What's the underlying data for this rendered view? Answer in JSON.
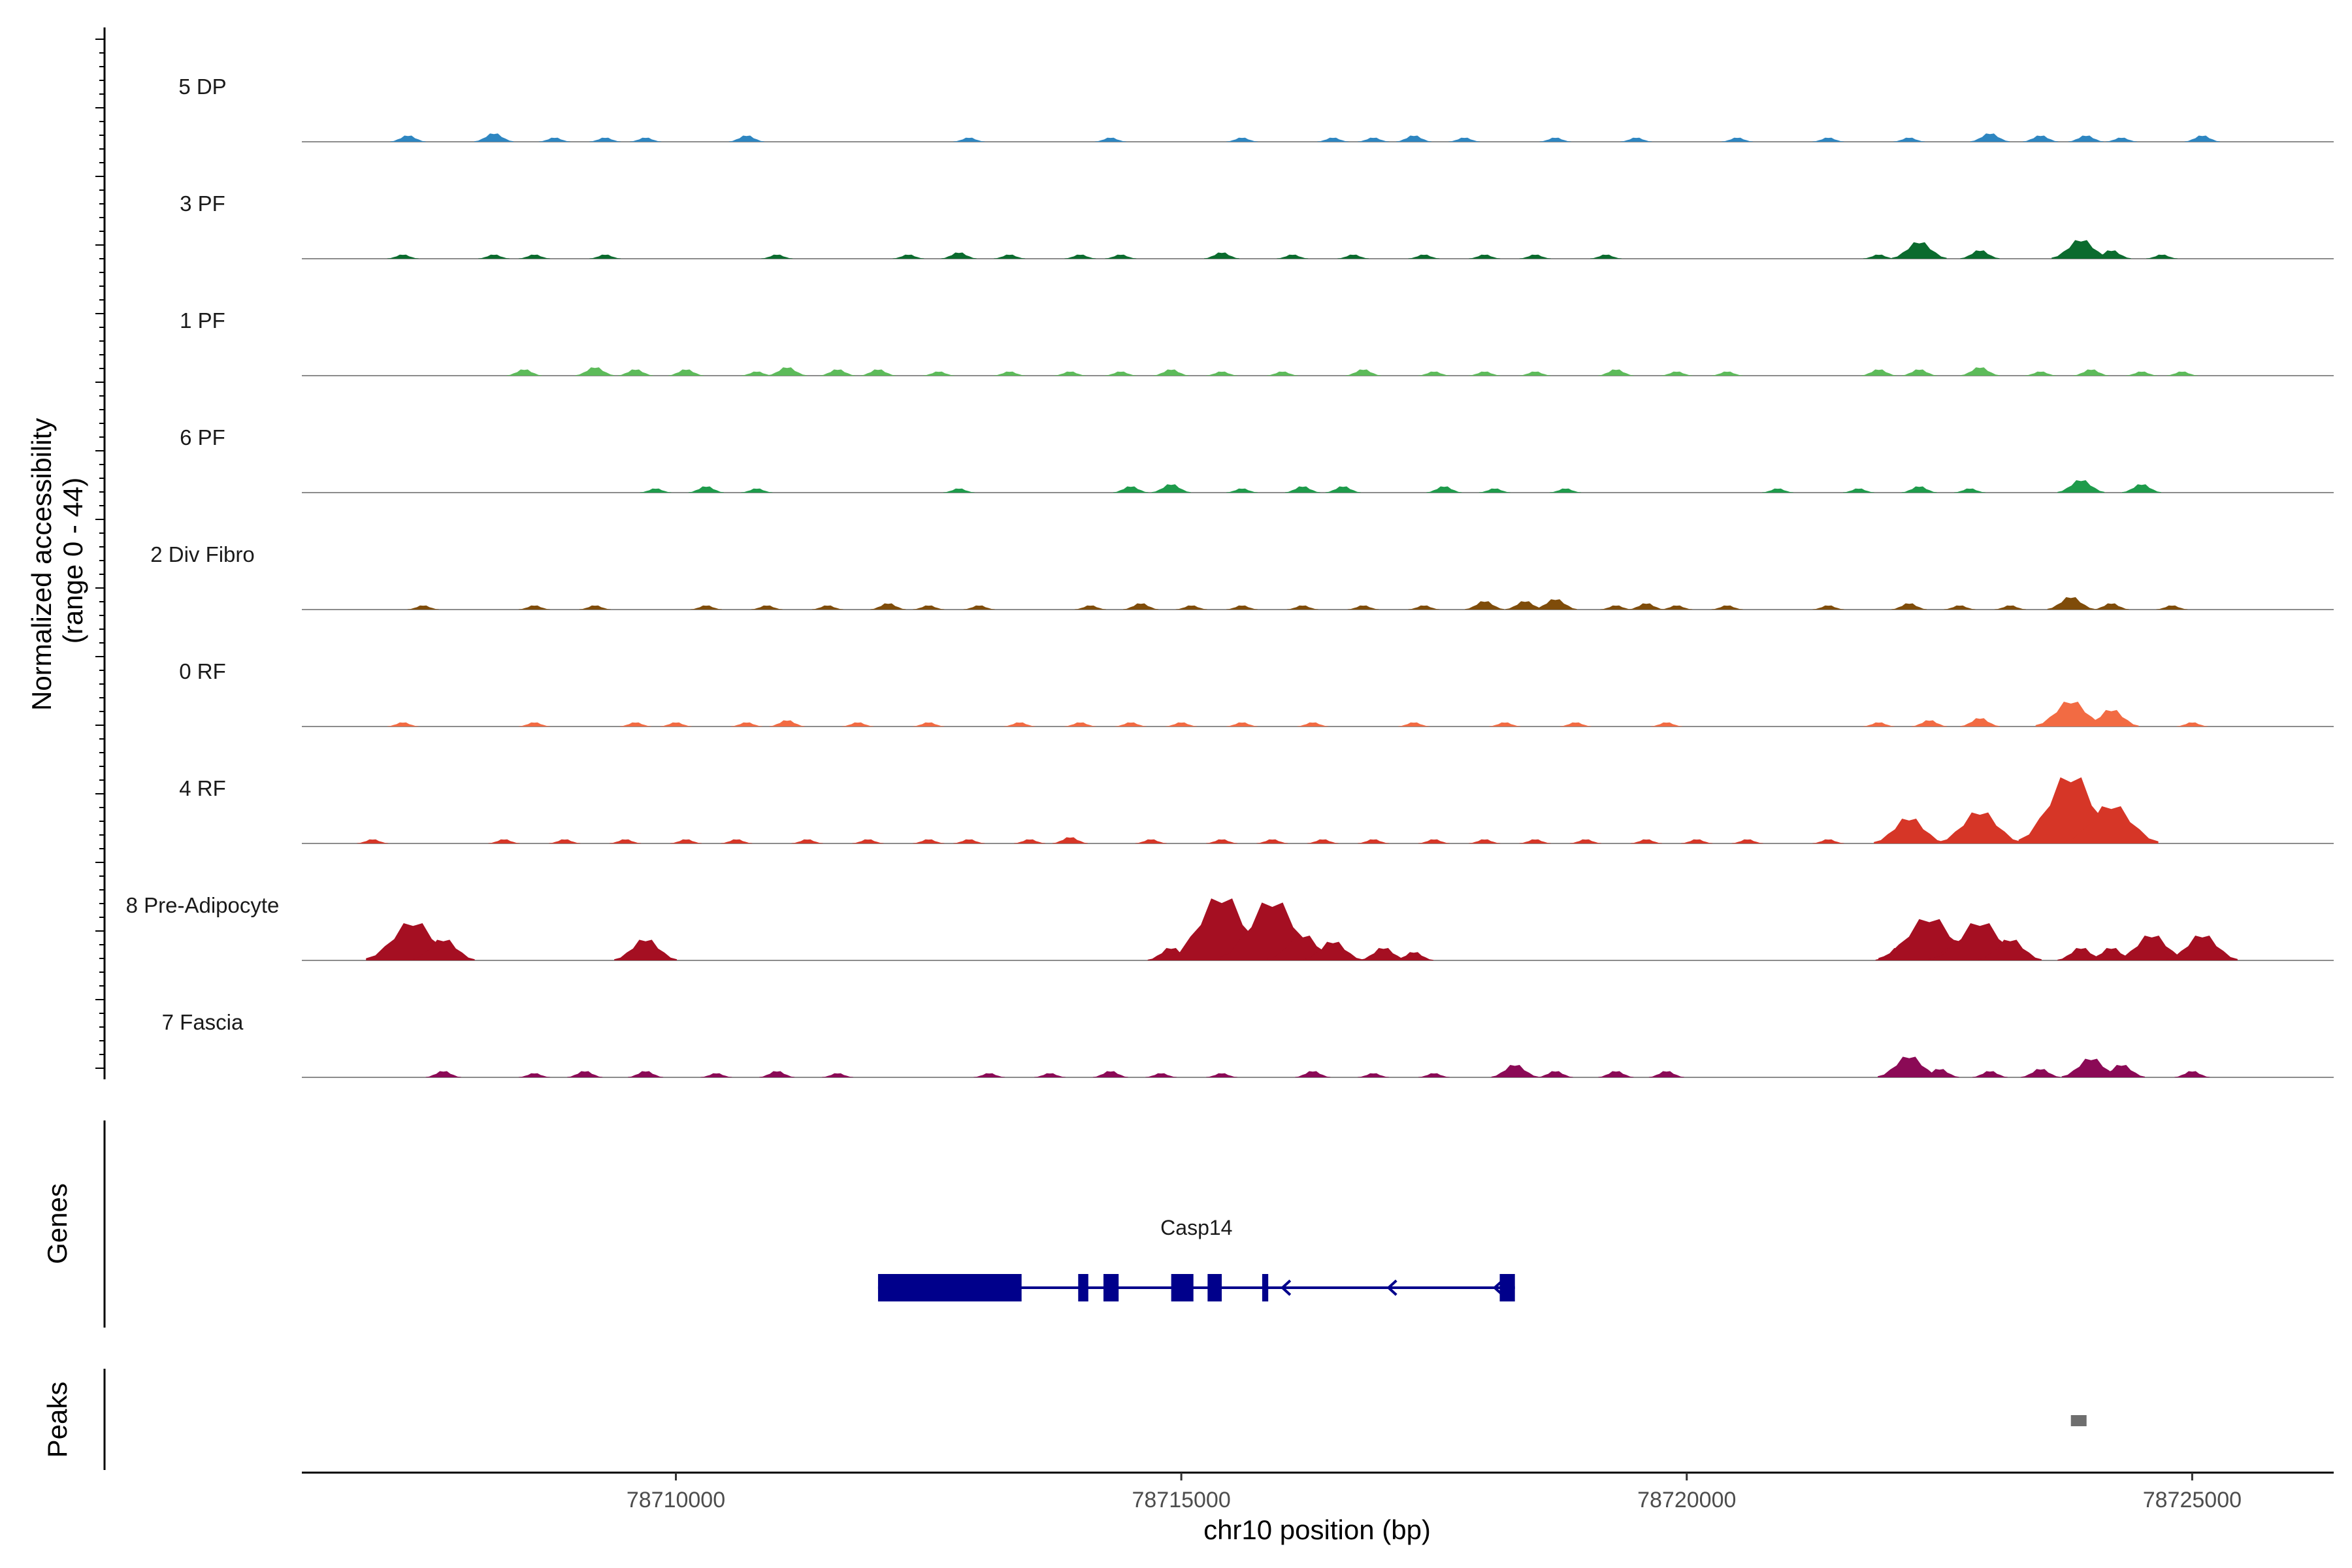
{
  "chart_data": {
    "type": "area",
    "title": "",
    "xlabel": "chr10 position (bp)",
    "ylabel_line1": "Normalized accessibility",
    "ylabel_line2": "(range 0 - 44)",
    "y_range": [
      0,
      44
    ],
    "x_range": [
      78706300,
      78726400
    ],
    "x_ticks": [
      {
        "value": 78710000,
        "label": "78710000"
      },
      {
        "value": 78715000,
        "label": "78715000"
      },
      {
        "value": 78720000,
        "label": "78720000"
      },
      {
        "value": 78725000,
        "label": "78725000"
      }
    ],
    "coverage_x": [
      78707000,
      78707500,
      78708000,
      78708500,
      78709000,
      78709500,
      78710000,
      78710500,
      78711000,
      78711500,
      78712000,
      78712500,
      78713000,
      78713500,
      78714000,
      78714500,
      78715000,
      78715500,
      78716000,
      78716500,
      78717000,
      78717500,
      78718000,
      78718500,
      78719000,
      78719500,
      78720000,
      78720500,
      78721000,
      78721500,
      78722000,
      78722500,
      78723000,
      78723500,
      78724000,
      78724500,
      78725000
    ],
    "tracks": [
      {
        "name": "5 DP",
        "color": "#2E86C1",
        "peaks": [
          [
            78707350,
            3
          ],
          [
            78708200,
            4
          ],
          [
            78708800,
            2
          ],
          [
            78709300,
            2
          ],
          [
            78709700,
            2
          ],
          [
            78710700,
            3
          ],
          [
            78712900,
            2
          ],
          [
            78714300,
            2
          ],
          [
            78715600,
            2
          ],
          [
            78716500,
            2
          ],
          [
            78716900,
            2
          ],
          [
            78717300,
            3
          ],
          [
            78717800,
            2
          ],
          [
            78718700,
            2
          ],
          [
            78719500,
            2
          ],
          [
            78720500,
            2
          ],
          [
            78721400,
            2
          ],
          [
            78722200,
            2
          ],
          [
            78723000,
            4
          ],
          [
            78723500,
            3
          ],
          [
            78723950,
            3
          ],
          [
            78724300,
            2
          ],
          [
            78725100,
            3
          ]
        ]
      },
      {
        "name": "3 PF",
        "color": "#0B6B2E",
        "peaks": [
          [
            78707300,
            2
          ],
          [
            78708200,
            2
          ],
          [
            78708600,
            2
          ],
          [
            78709300,
            2
          ],
          [
            78711000,
            2
          ],
          [
            78712300,
            2
          ],
          [
            78712800,
            3
          ],
          [
            78713300,
            2
          ],
          [
            78714000,
            2
          ],
          [
            78714400,
            2
          ],
          [
            78715400,
            3
          ],
          [
            78716100,
            2
          ],
          [
            78716700,
            2
          ],
          [
            78717400,
            2
          ],
          [
            78718000,
            2
          ],
          [
            78718500,
            2
          ],
          [
            78719200,
            2
          ],
          [
            78721900,
            2
          ],
          [
            78722300,
            8
          ],
          [
            78722900,
            4
          ],
          [
            78723900,
            9
          ],
          [
            78724200,
            4
          ],
          [
            78724700,
            2
          ]
        ]
      },
      {
        "name": "1 PF",
        "color": "#5DBB5A",
        "peaks": [
          [
            78708500,
            3
          ],
          [
            78709200,
            4
          ],
          [
            78709600,
            3
          ],
          [
            78710100,
            3
          ],
          [
            78710800,
            2
          ],
          [
            78711100,
            4
          ],
          [
            78711600,
            3
          ],
          [
            78712000,
            3
          ],
          [
            78712600,
            2
          ],
          [
            78713300,
            2
          ],
          [
            78713900,
            2
          ],
          [
            78714400,
            2
          ],
          [
            78714900,
            3
          ],
          [
            78715400,
            2
          ],
          [
            78716000,
            2
          ],
          [
            78716800,
            3
          ],
          [
            78717500,
            2
          ],
          [
            78718000,
            2
          ],
          [
            78718500,
            2
          ],
          [
            78719300,
            3
          ],
          [
            78719900,
            2
          ],
          [
            78720400,
            2
          ],
          [
            78721900,
            3
          ],
          [
            78722300,
            3
          ],
          [
            78722900,
            4
          ],
          [
            78723500,
            2
          ],
          [
            78724000,
            3
          ],
          [
            78724500,
            2
          ],
          [
            78724900,
            2
          ]
        ]
      },
      {
        "name": "6 PF",
        "color": "#1E9B4B",
        "peaks": [
          [
            78709800,
            2
          ],
          [
            78710300,
            3
          ],
          [
            78710800,
            2
          ],
          [
            78712800,
            2
          ],
          [
            78714500,
            3
          ],
          [
            78714900,
            4
          ],
          [
            78715600,
            2
          ],
          [
            78716200,
            3
          ],
          [
            78716600,
            3
          ],
          [
            78717600,
            3
          ],
          [
            78718100,
            2
          ],
          [
            78718800,
            2
          ],
          [
            78720900,
            2
          ],
          [
            78721700,
            2
          ],
          [
            78722300,
            3
          ],
          [
            78722800,
            2
          ],
          [
            78723900,
            6
          ],
          [
            78724500,
            4
          ]
        ]
      },
      {
        "name": "2 Div Fibro",
        "color": "#7F4C0A",
        "peaks": [
          [
            78707500,
            2
          ],
          [
            78708600,
            2
          ],
          [
            78709200,
            2
          ],
          [
            78710300,
            2
          ],
          [
            78710900,
            2
          ],
          [
            78711500,
            2
          ],
          [
            78712100,
            3
          ],
          [
            78712500,
            2
          ],
          [
            78713000,
            2
          ],
          [
            78714100,
            2
          ],
          [
            78714600,
            3
          ],
          [
            78715100,
            2
          ],
          [
            78715600,
            2
          ],
          [
            78716200,
            2
          ],
          [
            78716800,
            2
          ],
          [
            78717400,
            2
          ],
          [
            78718000,
            4
          ],
          [
            78718400,
            4
          ],
          [
            78718700,
            5
          ],
          [
            78719300,
            2
          ],
          [
            78719600,
            3
          ],
          [
            78719900,
            2
          ],
          [
            78720400,
            2
          ],
          [
            78721400,
            2
          ],
          [
            78722200,
            3
          ],
          [
            78722700,
            2
          ],
          [
            78723200,
            2
          ],
          [
            78723800,
            6
          ],
          [
            78724200,
            3
          ],
          [
            78724800,
            2
          ]
        ]
      },
      {
        "name": "0 RF",
        "color": "#F26B43",
        "peaks": [
          [
            78707300,
            2
          ],
          [
            78708600,
            2
          ],
          [
            78709600,
            2
          ],
          [
            78710000,
            2
          ],
          [
            78710700,
            2
          ],
          [
            78711100,
            3
          ],
          [
            78711800,
            2
          ],
          [
            78712500,
            2
          ],
          [
            78713400,
            2
          ],
          [
            78714000,
            2
          ],
          [
            78714500,
            2
          ],
          [
            78715000,
            2
          ],
          [
            78715600,
            2
          ],
          [
            78716300,
            2
          ],
          [
            78717300,
            2
          ],
          [
            78718200,
            2
          ],
          [
            78718900,
            2
          ],
          [
            78719800,
            2
          ],
          [
            78721900,
            2
          ],
          [
            78722400,
            3
          ],
          [
            78722900,
            4
          ],
          [
            78723800,
            12
          ],
          [
            78724200,
            8
          ],
          [
            78725000,
            2
          ]
        ]
      },
      {
        "name": "4 RF",
        "color": "#D63627",
        "peaks": [
          [
            78707000,
            2
          ],
          [
            78708300,
            2
          ],
          [
            78708900,
            2
          ],
          [
            78709500,
            2
          ],
          [
            78710100,
            2
          ],
          [
            78710600,
            2
          ],
          [
            78711300,
            2
          ],
          [
            78711900,
            2
          ],
          [
            78712500,
            2
          ],
          [
            78712900,
            2
          ],
          [
            78713500,
            2
          ],
          [
            78713900,
            3
          ],
          [
            78714700,
            2
          ],
          [
            78715400,
            2
          ],
          [
            78715900,
            2
          ],
          [
            78716400,
            2
          ],
          [
            78716900,
            2
          ],
          [
            78717500,
            2
          ],
          [
            78718000,
            2
          ],
          [
            78718500,
            2
          ],
          [
            78719000,
            2
          ],
          [
            78719600,
            2
          ],
          [
            78720100,
            2
          ],
          [
            78720600,
            2
          ],
          [
            78721400,
            2
          ],
          [
            78722200,
            12
          ],
          [
            78722900,
            15
          ],
          [
            78723800,
            32
          ],
          [
            78724200,
            18
          ]
        ]
      },
      {
        "name": "8 Pre-Adipocyte",
        "color": "#A50F22",
        "peaks": [
          [
            78707400,
            18
          ],
          [
            78707700,
            10
          ],
          [
            78709700,
            10
          ],
          [
            78714900,
            6
          ],
          [
            78715400,
            30
          ],
          [
            78715900,
            28
          ],
          [
            78716200,
            12
          ],
          [
            78716500,
            9
          ],
          [
            78717000,
            6
          ],
          [
            78717300,
            4
          ],
          [
            78722100,
            6
          ],
          [
            78722400,
            20
          ],
          [
            78722700,
            10
          ],
          [
            78722900,
            18
          ],
          [
            78723200,
            10
          ],
          [
            78723900,
            6
          ],
          [
            78724200,
            6
          ],
          [
            78724600,
            12
          ],
          [
            78725100,
            12
          ]
        ]
      },
      {
        "name": "7 Fascia",
        "color": "#8B0A56",
        "peaks": [
          [
            78707700,
            3
          ],
          [
            78708600,
            2
          ],
          [
            78709100,
            3
          ],
          [
            78709700,
            3
          ],
          [
            78710400,
            2
          ],
          [
            78711000,
            3
          ],
          [
            78711600,
            2
          ],
          [
            78713100,
            2
          ],
          [
            78713700,
            2
          ],
          [
            78714300,
            3
          ],
          [
            78714800,
            2
          ],
          [
            78715400,
            2
          ],
          [
            78716300,
            3
          ],
          [
            78716900,
            2
          ],
          [
            78717500,
            2
          ],
          [
            78718300,
            6
          ],
          [
            78718700,
            3
          ],
          [
            78719300,
            3
          ],
          [
            78719800,
            3
          ],
          [
            78722200,
            10
          ],
          [
            78722500,
            4
          ],
          [
            78723000,
            3
          ],
          [
            78723500,
            4
          ],
          [
            78724000,
            9
          ],
          [
            78724300,
            6
          ],
          [
            78725000,
            3
          ]
        ]
      }
    ],
    "gene": {
      "name": "Casp14",
      "start": 78712000,
      "end": 78718300,
      "strand": "-",
      "exons": [
        [
          78712000,
          78713420
        ],
        [
          78713980,
          78714080
        ],
        [
          78714230,
          78714380
        ],
        [
          78714900,
          78715120
        ],
        [
          78715260,
          78715400
        ],
        [
          78715800,
          78715860
        ],
        [
          78718150,
          78718300
        ]
      ]
    },
    "peaks_track": [
      {
        "start": 78723800,
        "end": 78723950
      }
    ],
    "panel_titles": {
      "genes": "Genes",
      "peaks": "Peaks"
    }
  }
}
